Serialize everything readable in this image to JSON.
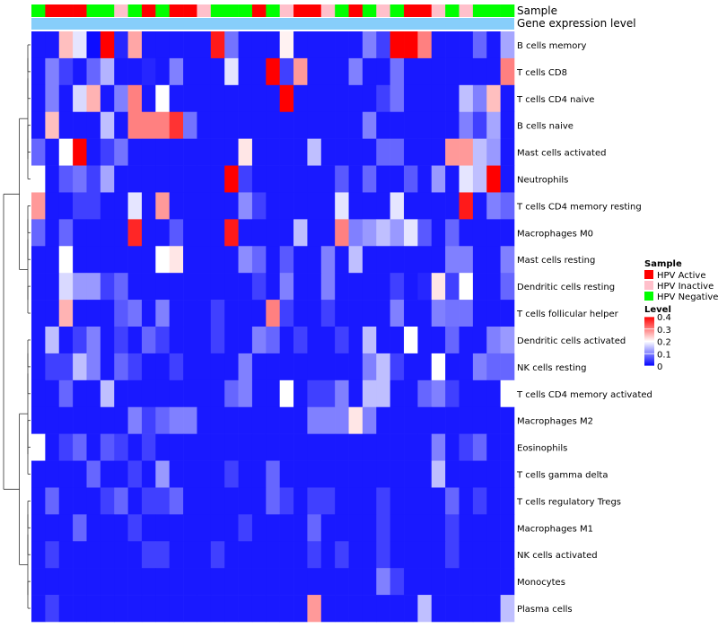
{
  "chart_data": {
    "type": "heatmap",
    "annotation_labels": {
      "sample": "Sample",
      "gene": "Gene expression level"
    },
    "sample_legend": {
      "title": "Sample",
      "entries": [
        {
          "label": "HPV Active",
          "color": "#ff0000"
        },
        {
          "label": "HPV Inactive",
          "color": "#ffc0cb"
        },
        {
          "label": "HPV Negative",
          "color": "#00ff00"
        }
      ]
    },
    "level_legend": {
      "title": "Level",
      "ticks": [
        "0.4",
        "0.3",
        "0.2",
        "0.1",
        "0"
      ],
      "range": [
        0,
        0.4
      ],
      "colors": [
        "#0000ff",
        "#ffffff",
        "#ff0000"
      ]
    },
    "gene_bar_color": "#87cefa",
    "sample_groups": [
      "N",
      "A",
      "A",
      "A",
      "N",
      "N",
      "I",
      "N",
      "A",
      "N",
      "A",
      "A",
      "I",
      "N",
      "N",
      "N",
      "A",
      "N",
      "I",
      "A",
      "A",
      "I",
      "N",
      "A",
      "N",
      "I",
      "N",
      "A",
      "A",
      "I",
      "N",
      "I",
      "N",
      "N",
      "N"
    ],
    "rows": [
      "B cells memory",
      "T cells CD8",
      "T cells CD4 naive",
      "B cells naive",
      "Mast cells activated",
      "Neutrophils",
      "T cells CD4 memory resting",
      "Macrophages M0",
      "Mast cells resting",
      "Dendritic cells resting",
      "T cells follicular helper",
      "Dendritic cells activated",
      "NK cells resting",
      "T cells CD4 memory activated",
      "Macrophages M2",
      "Eosinophils",
      "T cells gamma delta",
      "T cells regulatory  Tregs",
      "Macrophages M1",
      "NK cells activated",
      "Monocytes",
      "Plasma cells"
    ],
    "values": [
      [
        0.02,
        0.02,
        0.25,
        0.18,
        0.01,
        0.4,
        0.03,
        0.27,
        0.02,
        0.02,
        0.02,
        0.02,
        0.02,
        0.38,
        0.09,
        0.02,
        0.02,
        0.02,
        0.21,
        0.02,
        0.02,
        0.02,
        0.02,
        0.02,
        0.1,
        0.05,
        0.4,
        0.4,
        0.3,
        0.02,
        0.02,
        0.02,
        0.08,
        0.02,
        0.13
      ],
      [
        0.02,
        0.1,
        0.05,
        0.02,
        0.08,
        0.14,
        0.02,
        0.02,
        0.03,
        0.02,
        0.1,
        0.02,
        0.02,
        0.02,
        0.18,
        0.02,
        0.02,
        0.4,
        0.05,
        0.28,
        0.02,
        0.02,
        0.02,
        0.1,
        0.02,
        0.02,
        0.09,
        0.02,
        0.02,
        0.02,
        0.02,
        0.02,
        0.02,
        0.02,
        0.3
      ],
      [
        0.02,
        0.1,
        0.02,
        0.17,
        0.26,
        0.02,
        0.1,
        0.3,
        0.02,
        0.2,
        0.02,
        0.02,
        0.02,
        0.02,
        0.02,
        0.02,
        0.02,
        0.02,
        0.4,
        0.02,
        0.02,
        0.02,
        0.02,
        0.02,
        0.02,
        0.05,
        0.09,
        0.02,
        0.02,
        0.02,
        0.02,
        0.15,
        0.1,
        0.25,
        0.02
      ],
      [
        0.02,
        0.25,
        0.02,
        0.02,
        0.02,
        0.15,
        0.02,
        0.3,
        0.3,
        0.3,
        0.36,
        0.09,
        0.02,
        0.02,
        0.02,
        0.02,
        0.02,
        0.02,
        0.02,
        0.02,
        0.02,
        0.02,
        0.02,
        0.02,
        0.1,
        0.02,
        0.02,
        0.02,
        0.02,
        0.02,
        0.02,
        0.1,
        0.05,
        0.13,
        0.02
      ],
      [
        0.08,
        0.02,
        0.2,
        0.4,
        0.02,
        0.05,
        0.09,
        0.02,
        0.02,
        0.02,
        0.02,
        0.02,
        0.02,
        0.02,
        0.02,
        0.22,
        0.02,
        0.02,
        0.02,
        0.02,
        0.15,
        0.02,
        0.02,
        0.02,
        0.02,
        0.08,
        0.08,
        0.02,
        0.02,
        0.02,
        0.28,
        0.28,
        0.15,
        0.12,
        0.02
      ],
      [
        0.2,
        0.02,
        0.07,
        0.09,
        0.05,
        0.13,
        0.02,
        0.02,
        0.02,
        0.02,
        0.02,
        0.02,
        0.02,
        0.02,
        0.4,
        0.05,
        0.02,
        0.02,
        0.02,
        0.02,
        0.02,
        0.02,
        0.07,
        0.02,
        0.08,
        0.02,
        0.02,
        0.07,
        0.02,
        0.12,
        0.02,
        0.18,
        0.15,
        0.4,
        0.02
      ],
      [
        0.28,
        0.02,
        0.02,
        0.05,
        0.05,
        0.02,
        0.02,
        0.18,
        0.02,
        0.28,
        0.02,
        0.02,
        0.02,
        0.02,
        0.02,
        0.11,
        0.05,
        0.02,
        0.02,
        0.02,
        0.02,
        0.02,
        0.18,
        0.02,
        0.02,
        0.02,
        0.18,
        0.02,
        0.02,
        0.02,
        0.02,
        0.38,
        0.02,
        0.1,
        0.08
      ],
      [
        0.08,
        0.02,
        0.08,
        0.02,
        0.02,
        0.02,
        0.02,
        0.37,
        0.02,
        0.02,
        0.07,
        0.02,
        0.02,
        0.02,
        0.38,
        0.02,
        0.02,
        0.02,
        0.02,
        0.15,
        0.02,
        0.02,
        0.3,
        0.1,
        0.12,
        0.15,
        0.12,
        0.18,
        0.07,
        0.02,
        0.08,
        0.02,
        0.02,
        0.02,
        0.02
      ],
      [
        0.02,
        0.02,
        0.2,
        0.02,
        0.02,
        0.02,
        0.02,
        0.02,
        0.02,
        0.2,
        0.22,
        0.02,
        0.02,
        0.02,
        0.02,
        0.11,
        0.08,
        0.02,
        0.07,
        0.02,
        0.02,
        0.1,
        0.02,
        0.15,
        0.02,
        0.02,
        0.02,
        0.02,
        0.02,
        0.02,
        0.1,
        0.1,
        0.02,
        0.02,
        0.1
      ],
      [
        0.02,
        0.02,
        0.17,
        0.12,
        0.12,
        0.05,
        0.08,
        0.02,
        0.02,
        0.02,
        0.02,
        0.02,
        0.02,
        0.02,
        0.02,
        0.02,
        0.05,
        0.02,
        0.1,
        0.02,
        0.02,
        0.1,
        0.02,
        0.02,
        0.02,
        0.02,
        0.05,
        0.02,
        0.03,
        0.22,
        0.05,
        0.2,
        0.02,
        0.02,
        0.08
      ],
      [
        0.02,
        0.02,
        0.26,
        0.02,
        0.02,
        0.02,
        0.07,
        0.09,
        0.02,
        0.1,
        0.02,
        0.02,
        0.02,
        0.05,
        0.02,
        0.02,
        0.02,
        0.3,
        0.05,
        0.02,
        0.02,
        0.05,
        0.02,
        0.02,
        0.02,
        0.02,
        0.1,
        0.02,
        0.02,
        0.1,
        0.09,
        0.09,
        0.02,
        0.02,
        0.02
      ],
      [
        0.02,
        0.15,
        0.02,
        0.05,
        0.1,
        0.02,
        0.05,
        0.02,
        0.08,
        0.05,
        0.02,
        0.02,
        0.02,
        0.05,
        0.02,
        0.02,
        0.1,
        0.08,
        0.02,
        0.05,
        0.02,
        0.02,
        0.05,
        0.02,
        0.15,
        0.02,
        0.02,
        0.2,
        0.02,
        0.02,
        0.08,
        0.02,
        0.02,
        0.1,
        0.12
      ],
      [
        0.02,
        0.05,
        0.05,
        0.15,
        0.1,
        0.02,
        0.08,
        0.05,
        0.02,
        0.02,
        0.05,
        0.02,
        0.02,
        0.02,
        0.02,
        0.1,
        0.02,
        0.02,
        0.02,
        0.02,
        0.02,
        0.02,
        0.02,
        0.02,
        0.1,
        0.15,
        0.05,
        0.02,
        0.02,
        0.2,
        0.02,
        0.02,
        0.1,
        0.08,
        0.08
      ],
      [
        0.02,
        0.02,
        0.08,
        0.02,
        0.02,
        0.15,
        0.02,
        0.02,
        0.02,
        0.02,
        0.02,
        0.02,
        0.02,
        0.02,
        0.08,
        0.1,
        0.02,
        0.02,
        0.2,
        0.02,
        0.05,
        0.05,
        0.1,
        0.02,
        0.15,
        0.15,
        0.02,
        0.02,
        0.08,
        0.1,
        0.05,
        0.02,
        0.02,
        0.02,
        0.2
      ],
      [
        0.02,
        0.02,
        0.02,
        0.02,
        0.02,
        0.02,
        0.02,
        0.1,
        0.05,
        0.08,
        0.1,
        0.1,
        0.02,
        0.02,
        0.02,
        0.02,
        0.02,
        0.02,
        0.02,
        0.02,
        0.1,
        0.1,
        0.1,
        0.22,
        0.1,
        0.02,
        0.02,
        0.02,
        0.02,
        0.02,
        0.02,
        0.02,
        0.02,
        0.02,
        0.02
      ],
      [
        0.2,
        0.02,
        0.05,
        0.08,
        0.02,
        0.07,
        0.05,
        0.02,
        0.05,
        0.02,
        0.02,
        0.02,
        0.02,
        0.02,
        0.02,
        0.02,
        0.02,
        0.02,
        0.02,
        0.02,
        0.02,
        0.02,
        0.02,
        0.02,
        0.02,
        0.02,
        0.02,
        0.02,
        0.02,
        0.1,
        0.02,
        0.05,
        0.08,
        0.02,
        0.02
      ],
      [
        0.02,
        0.02,
        0.02,
        0.02,
        0.08,
        0.02,
        0.02,
        0.05,
        0.02,
        0.12,
        0.02,
        0.02,
        0.02,
        0.02,
        0.05,
        0.02,
        0.02,
        0.08,
        0.02,
        0.02,
        0.02,
        0.02,
        0.02,
        0.02,
        0.02,
        0.02,
        0.02,
        0.02,
        0.02,
        0.15,
        0.02,
        0.02,
        0.02,
        0.02,
        0.02
      ],
      [
        0.02,
        0.08,
        0.02,
        0.02,
        0.02,
        0.05,
        0.08,
        0.02,
        0.05,
        0.05,
        0.08,
        0.02,
        0.02,
        0.02,
        0.02,
        0.02,
        0.02,
        0.08,
        0.05,
        0.02,
        0.05,
        0.05,
        0.02,
        0.02,
        0.02,
        0.05,
        0.02,
        0.02,
        0.02,
        0.02,
        0.08,
        0.02,
        0.05,
        0.02,
        0.02
      ],
      [
        0.02,
        0.02,
        0.02,
        0.08,
        0.02,
        0.02,
        0.02,
        0.05,
        0.02,
        0.02,
        0.02,
        0.02,
        0.02,
        0.02,
        0.02,
        0.05,
        0.02,
        0.02,
        0.02,
        0.02,
        0.08,
        0.02,
        0.02,
        0.02,
        0.02,
        0.05,
        0.02,
        0.02,
        0.02,
        0.02,
        0.05,
        0.02,
        0.02,
        0.02,
        0.02
      ],
      [
        0.02,
        0.05,
        0.02,
        0.02,
        0.02,
        0.02,
        0.02,
        0.02,
        0.05,
        0.05,
        0.02,
        0.02,
        0.02,
        0.05,
        0.02,
        0.02,
        0.02,
        0.02,
        0.02,
        0.02,
        0.05,
        0.02,
        0.05,
        0.02,
        0.02,
        0.05,
        0.02,
        0.02,
        0.02,
        0.02,
        0.05,
        0.02,
        0.02,
        0.02,
        0.02
      ],
      [
        0.02,
        0.02,
        0.02,
        0.02,
        0.02,
        0.02,
        0.02,
        0.02,
        0.02,
        0.02,
        0.02,
        0.02,
        0.02,
        0.02,
        0.02,
        0.02,
        0.02,
        0.02,
        0.02,
        0.02,
        0.02,
        0.02,
        0.02,
        0.02,
        0.02,
        0.1,
        0.05,
        0.02,
        0.02,
        0.02,
        0.02,
        0.02,
        0.02,
        0.02,
        0.02
      ],
      [
        0.02,
        0.05,
        0.02,
        0.02,
        0.02,
        0.02,
        0.02,
        0.02,
        0.02,
        0.02,
        0.02,
        0.02,
        0.02,
        0.02,
        0.02,
        0.02,
        0.02,
        0.02,
        0.02,
        0.02,
        0.28,
        0.02,
        0.02,
        0.02,
        0.02,
        0.02,
        0.02,
        0.02,
        0.15,
        0.02,
        0.02,
        0.02,
        0.02,
        0.02,
        0.15
      ]
    ]
  }
}
